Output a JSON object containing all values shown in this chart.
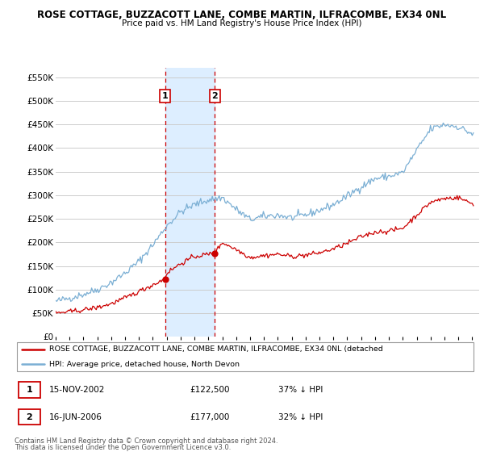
{
  "title1": "ROSE COTTAGE, BUZZACOTT LANE, COMBE MARTIN, ILFRACOMBE, EX34 0NL",
  "title2": "Price paid vs. HM Land Registry's House Price Index (HPI)",
  "ylabel_ticks": [
    0,
    50000,
    100000,
    150000,
    200000,
    250000,
    300000,
    350000,
    400000,
    450000,
    500000,
    550000
  ],
  "years_start": 1995,
  "years_end": 2025,
  "sale1_year": 2002.875,
  "sale1_price": 122500,
  "sale2_year": 2006.458,
  "sale2_price": 177000,
  "sale1_date": "15-NOV-2002",
  "sale2_date": "16-JUN-2006",
  "sale1_pct": "37% ↓ HPI",
  "sale2_pct": "32% ↓ HPI",
  "legend_red": "ROSE COTTAGE, BUZZACOTT LANE, COMBE MARTIN, ILFRACOMBE, EX34 0NL (detached",
  "legend_blue": "HPI: Average price, detached house, North Devon",
  "footnote1": "Contains HM Land Registry data © Crown copyright and database right 2024.",
  "footnote2": "This data is licensed under the Open Government Licence v3.0.",
  "red_color": "#cc0000",
  "blue_color": "#7bafd4",
  "grid_color": "#cccccc",
  "highlight_color": "#ddeeff",
  "ylim_max": 570000,
  "xlim_min": 1995,
  "xlim_max": 2025.5
}
